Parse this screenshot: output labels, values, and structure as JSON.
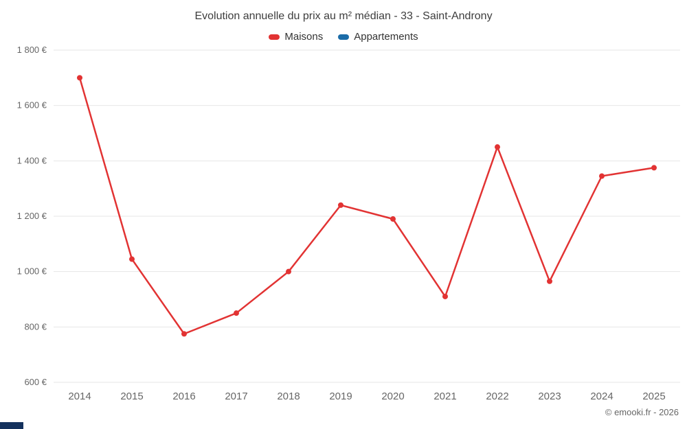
{
  "chart": {
    "title": "Evolution annuelle du prix au m² médian - 33 - Saint-Androny",
    "copyright": "© emooki.fr - 2026",
    "brand_bar_color": "#14315d",
    "grid_color": "#e6e6e6",
    "axis_label_color": "#666666",
    "title_color": "#3d3d3d"
  },
  "chart_data": {
    "type": "line",
    "title": "Evolution annuelle du prix au m² médian - 33 - Saint-Androny",
    "categories": [
      "2014",
      "2015",
      "2016",
      "2017",
      "2018",
      "2019",
      "2020",
      "2021",
      "2022",
      "2023",
      "2024",
      "2025"
    ],
    "series": [
      {
        "name": "Maisons",
        "color": "#e23333",
        "values": [
          1700,
          1045,
          775,
          850,
          1000,
          1240,
          1190,
          910,
          1450,
          965,
          1345,
          1375
        ]
      },
      {
        "name": "Appartements",
        "color": "#1b6ca8",
        "values": []
      }
    ],
    "xlabel": "",
    "ylabel": "",
    "ylim": [
      600,
      1800
    ],
    "ytick_step": 200,
    "ytick_format": "{value} €",
    "grid": true,
    "legend_position": "top"
  }
}
